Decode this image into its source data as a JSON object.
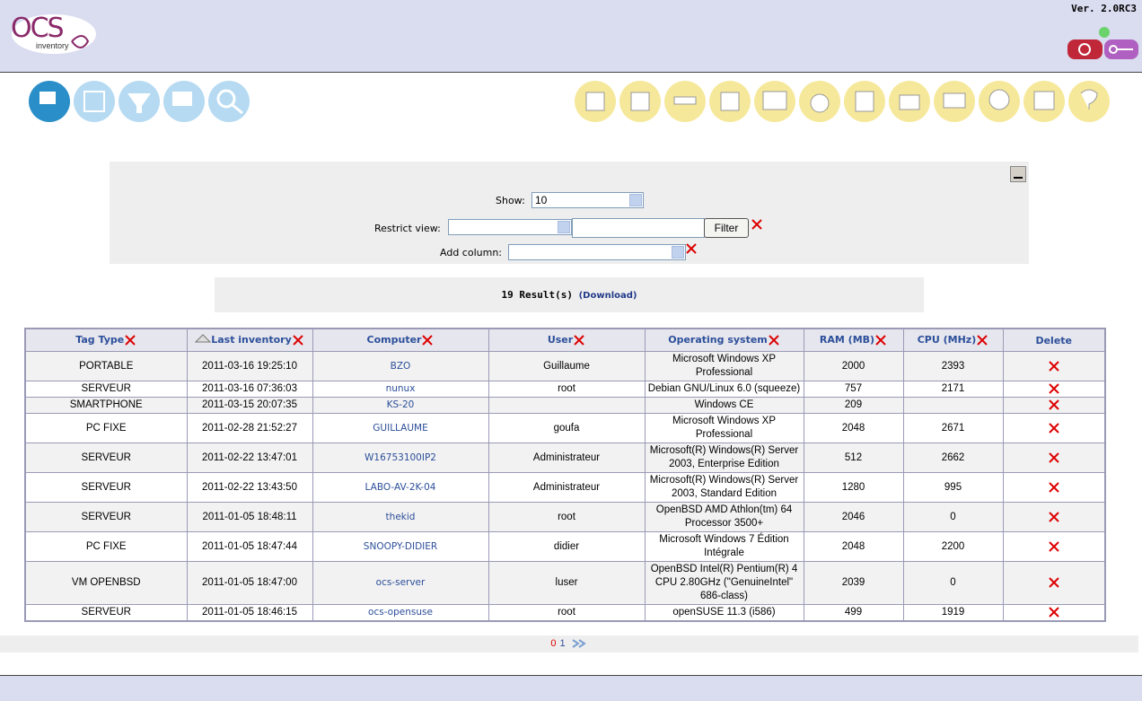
{
  "header": {
    "logo": "OCS",
    "logo_sub": "inventory",
    "version": "Ver. 2.0RC3"
  },
  "search": {
    "show_label": "Show:",
    "show_value": "10",
    "restrict_label": "Restrict view:",
    "filter_button": "Filter",
    "add_column_label": "Add column:"
  },
  "results": {
    "count": "19 Result(s)",
    "download": "(Download)"
  },
  "table": {
    "columns": [
      "Tag Type",
      "Last inventory",
      "Computer",
      "User",
      "Operating system",
      "RAM (MB)",
      "CPU (MHz)",
      "Delete"
    ],
    "rows": [
      [
        "PORTABLE",
        "2011-03-16 19:25:10",
        "BZO",
        "Guillaume",
        "Microsoft Windows XP Professional",
        "2000",
        "2393"
      ],
      [
        "SERVEUR",
        "2011-03-16 07:36:03",
        "nunux",
        "root",
        "Debian GNU/Linux 6.0 (squeeze)",
        "757",
        "2171"
      ],
      [
        "SMARTPHONE",
        "2011-03-15 20:07:35",
        "KS-20",
        null,
        "Windows CE",
        "209",
        null
      ],
      [
        "PC FIXE",
        "2011-02-28 21:52:27",
        "GUILLAUME",
        "goufa",
        "Microsoft Windows XP Professional",
        "2048",
        "2671"
      ],
      [
        "SERVEUR",
        "2011-02-22 13:47:01",
        "W16753100IP2",
        "Administrateur",
        "Microsoft(R) Windows(R) Server 2003, Enterprise Edition",
        "512",
        "2662"
      ],
      [
        "SERVEUR",
        "2011-02-22 13:43:50",
        "LABO-AV-2K-04",
        "Administrateur",
        "Microsoft(R) Windows(R) Server 2003, Standard Edition",
        "1280",
        "995"
      ],
      [
        "SERVEUR",
        "2011-01-05 18:48:11",
        "thekid",
        "root",
        "OpenBSD AMD Athlon(tm) 64 Processor 3500+",
        "2046",
        "0"
      ],
      [
        "PC FIXE",
        "2011-01-05 18:47:44",
        "SNOOPY-DIDIER",
        "didier",
        "Microsoft Windows 7 Édition Intégrale",
        "2048",
        "2200"
      ],
      [
        "VM OPENBSD",
        "2011-01-05 18:47:00",
        "ocs-server",
        "luser",
        "OpenBSD Intel(R) Pentium(R) 4 CPU 2.80GHz (\"GenuineIntel\" 686-class)",
        "2039",
        "0"
      ],
      [
        "SERVEUR",
        "2011-01-05 18:46:15",
        "ocs-opensuse",
        "root",
        "openSUSE 11.3 (i586)",
        "499",
        "1919"
      ]
    ]
  },
  "pagination": {
    "pages": [
      "0",
      "1"
    ]
  }
}
